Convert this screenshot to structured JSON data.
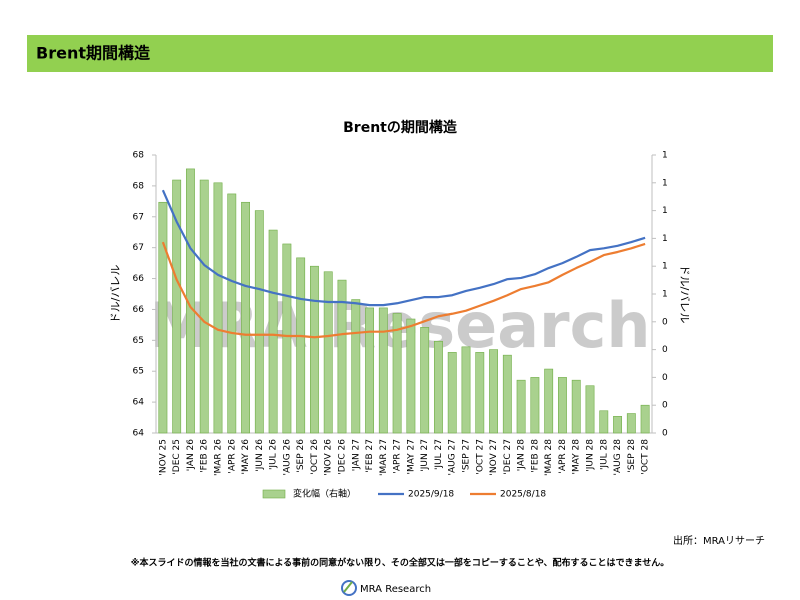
{
  "header": {
    "title": "Brent期間構造"
  },
  "chart_data": {
    "type": "combo",
    "title": "Brentの期間構造",
    "y_label": "ドル/バレル",
    "y2_label": "ドル/バレル",
    "watermark": "MRA Research",
    "categories": [
      "'NOV 25",
      "'DEC 25",
      "'JAN 26",
      "'FEB 26",
      "'MAR 26",
      "'APR 26",
      "'MAY 26",
      "'JUN 26",
      "'JUL 26",
      "'AUG 26",
      "'SEP 26",
      "'OCT 26",
      "'NOV 26",
      "'DEC 26",
      "'JAN 27",
      "'FEB 27",
      "'MAR 27",
      "'APR 27",
      "'MAY 27",
      "'JUN 27",
      "'JUL 27",
      "'AUG 27",
      "'SEP 27",
      "'OCT 27",
      "'NOV 27",
      "'DEC 27",
      "'JAN 28",
      "'FEB 28",
      "'MAR 28",
      "'APR 28",
      "'MAY 28",
      "'JUN 28",
      "'JUL 28",
      "'AUG 28",
      "'SEP 28",
      "'OCT 28"
    ],
    "ylim": [
      63.75,
      68.25
    ],
    "yticks": [
      {
        "value": 63.75,
        "label": "64"
      },
      {
        "value": 64.25,
        "label": "64"
      },
      {
        "value": 64.75,
        "label": "65"
      },
      {
        "value": 65.25,
        "label": "65"
      },
      {
        "value": 65.75,
        "label": "66"
      },
      {
        "value": 66.25,
        "label": "66"
      },
      {
        "value": 66.75,
        "label": "67"
      },
      {
        "value": 67.25,
        "label": "67"
      },
      {
        "value": 67.75,
        "label": "68"
      },
      {
        "value": 68.25,
        "label": "68"
      }
    ],
    "y2lim": [
      0,
      1
    ],
    "y2ticks": [
      0,
      {
        "value": 0.1,
        "label": "0"
      },
      {
        "value": 0.2,
        "label": "0"
      },
      {
        "value": 0.3,
        "label": "0"
      },
      {
        "value": 0.4,
        "label": "0"
      },
      {
        "value": 0.5,
        "label": "1"
      },
      {
        "value": 0.6,
        "label": "1"
      },
      {
        "value": 0.7,
        "label": "1"
      },
      {
        "value": 0.8,
        "label": "1"
      },
      {
        "value": 0.9,
        "label": "1"
      },
      1
    ],
    "series": [
      {
        "name": "変化幅（右軸）",
        "type": "bar",
        "axis": "y2",
        "color": "#a9d18e",
        "edge": "#70ad47",
        "values": [
          0.83,
          0.91,
          0.95,
          0.91,
          0.9,
          0.86,
          0.83,
          0.8,
          0.73,
          0.68,
          0.63,
          0.6,
          0.58,
          0.55,
          0.48,
          0.45,
          0.45,
          0.43,
          0.41,
          0.38,
          0.33,
          0.29,
          0.31,
          0.29,
          0.3,
          0.28,
          0.19,
          0.2,
          0.23,
          0.2,
          0.19,
          0.17,
          0.08,
          0.06,
          0.07,
          0.1
        ]
      },
      {
        "name": "2025/9/18",
        "type": "line",
        "color": "#4472c4",
        "values": [
          67.68,
          67.17,
          66.74,
          66.47,
          66.31,
          66.21,
          66.13,
          66.08,
          66.02,
          65.97,
          65.92,
          65.89,
          65.87,
          65.87,
          65.85,
          65.82,
          65.82,
          65.85,
          65.9,
          65.95,
          65.95,
          65.98,
          66.05,
          66.1,
          66.16,
          66.24,
          66.26,
          66.32,
          66.42,
          66.5,
          66.6,
          66.71,
          66.74,
          66.78,
          66.84,
          66.91
        ]
      },
      {
        "name": "2025/8/18",
        "type": "line",
        "color": "#ed7d31",
        "values": [
          66.84,
          66.23,
          65.79,
          65.55,
          65.42,
          65.37,
          65.34,
          65.34,
          65.34,
          65.32,
          65.32,
          65.3,
          65.32,
          65.35,
          65.37,
          65.39,
          65.39,
          65.42,
          65.48,
          65.56,
          65.64,
          65.68,
          65.73,
          65.81,
          65.89,
          65.98,
          66.08,
          66.13,
          66.19,
          66.31,
          66.42,
          66.52,
          66.63,
          66.68,
          66.74,
          66.81
        ]
      }
    ]
  },
  "source": "出所：MRAリサーチ",
  "footer": {
    "note": "※本スライドの情報を当社の文書による事前の同意がない限り、その全部又は一部をコピーすることや、配布することはできません。",
    "logo": "MRA Research"
  }
}
